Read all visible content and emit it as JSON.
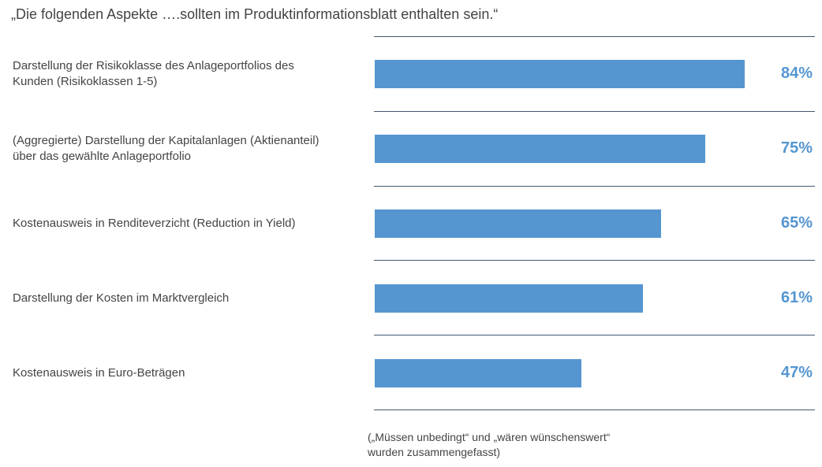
{
  "chart_data": {
    "type": "bar",
    "orientation": "horizontal",
    "title": "„Die folgenden Aspekte ….sollten im Produktinformationsblatt enthalten sein.“",
    "categories": [
      [
        "Darstellung der Risikoklasse des Anlageportfolios des",
        "Kunden (Risikoklassen 1-5)"
      ],
      [
        "(Aggregierte) Darstellung der Kapitalanlagen (Aktienanteil)",
        "über das gewählte Anlageportfolio"
      ],
      [
        "Kostenausweis in Renditeverzicht (Reduction in Yield)"
      ],
      [
        "Darstellung der Kosten im Marktvergleich"
      ],
      [
        "Kostenausweis in Euro-Beträgen"
      ]
    ],
    "values": [
      84,
      75,
      65,
      61,
      47
    ],
    "value_labels": [
      "84%",
      "75%",
      "65%",
      "61%",
      "47%"
    ],
    "xlim": [
      0,
      100
    ],
    "unit": "%",
    "grid": false,
    "colors": {
      "bar": "#5596d0",
      "separator": "#3f5770"
    },
    "note": [
      "(„Müssen unbedingt“ und „wären wünschenswert“",
      "wurden zusammengefasst)"
    ]
  }
}
